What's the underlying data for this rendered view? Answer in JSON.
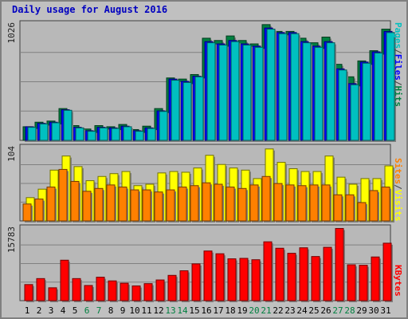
{
  "title": "Daily usage for August 2016",
  "colors": {
    "background": "#c0c0c0",
    "panel": "#b8b8b8",
    "title": "#0000c0",
    "pages": "#00c0c0",
    "files": "#0000ff",
    "hits": "#008040",
    "visits": "#ffff00",
    "sites": "#ff8000",
    "kbytes": "#ff0000",
    "weekday_label": "#000000",
    "weekend_label": "#008040"
  },
  "chart_data": [
    {
      "type": "bar",
      "panel": "top",
      "ymax_label": "1026",
      "ylim": [
        0,
        1026
      ],
      "grid": true,
      "categories": [
        "1",
        "2",
        "3",
        "4",
        "5",
        "6",
        "7",
        "8",
        "9",
        "10",
        "11",
        "12",
        "13",
        "14",
        "15",
        "16",
        "17",
        "18",
        "19",
        "20",
        "21",
        "22",
        "23",
        "24",
        "25",
        "26",
        "27",
        "28",
        "29",
        "30",
        "31"
      ],
      "weekend_days": [
        "6",
        "7",
        "13",
        "14",
        "20",
        "21",
        "27",
        "28"
      ],
      "legend": [
        "Pages",
        "/",
        "Files",
        "/",
        "Hits"
      ],
      "series": [
        {
          "name": "Hits",
          "values": [
            120,
            160,
            170,
            280,
            130,
            100,
            130,
            120,
            140,
            95,
            125,
            280,
            550,
            540,
            580,
            900,
            880,
            920,
            880,
            850,
            1020,
            960,
            960,
            900,
            860,
            910,
            670,
            560,
            700,
            790,
            980
          ]
        },
        {
          "name": "Files",
          "values": [
            120,
            150,
            160,
            270,
            115,
            85,
            115,
            110,
            125,
            85,
            110,
            260,
            540,
            520,
            565,
            870,
            850,
            880,
            850,
            830,
            990,
            950,
            950,
            870,
            830,
            870,
            630,
            500,
            690,
            780,
            960
          ]
        },
        {
          "name": "Pages",
          "values": [
            115,
            145,
            155,
            265,
            110,
            80,
            110,
            105,
            120,
            80,
            105,
            255,
            530,
            510,
            560,
            860,
            840,
            870,
            840,
            820,
            980,
            940,
            940,
            860,
            820,
            860,
            620,
            490,
            680,
            770,
            950
          ]
        }
      ]
    },
    {
      "type": "bar",
      "panel": "middle",
      "ymax_label": "104",
      "ylim": [
        0,
        104
      ],
      "grid": true,
      "categories": [
        "1",
        "2",
        "3",
        "4",
        "5",
        "6",
        "7",
        "8",
        "9",
        "10",
        "11",
        "12",
        "13",
        "14",
        "15",
        "16",
        "17",
        "18",
        "19",
        "20",
        "21",
        "22",
        "23",
        "24",
        "25",
        "26",
        "27",
        "28",
        "29",
        "30",
        "31"
      ],
      "legend": [
        "Sites",
        "/",
        "Visits"
      ],
      "series": [
        {
          "name": "Visits",
          "values": [
            33,
            45,
            72,
            92,
            77,
            57,
            63,
            67,
            70,
            50,
            52,
            68,
            70,
            69,
            75,
            93,
            80,
            75,
            72,
            60,
            102,
            83,
            74,
            70,
            70,
            92,
            62,
            52,
            60,
            60,
            78
          ]
        },
        {
          "name": "Sites",
          "values": [
            24,
            31,
            48,
            73,
            56,
            42,
            46,
            51,
            48,
            44,
            44,
            41,
            44,
            48,
            50,
            54,
            52,
            48,
            46,
            51,
            63,
            53,
            51,
            50,
            51,
            51,
            37,
            37,
            26,
            43,
            48
          ]
        }
      ]
    },
    {
      "type": "bar",
      "panel": "bottom",
      "ymax_label": "15783",
      "ylim": [
        0,
        15783
      ],
      "grid": true,
      "categories": [
        "1",
        "2",
        "3",
        "4",
        "5",
        "6",
        "7",
        "8",
        "9",
        "10",
        "11",
        "12",
        "13",
        "14",
        "15",
        "16",
        "17",
        "18",
        "19",
        "20",
        "21",
        "22",
        "23",
        "24",
        "25",
        "26",
        "27",
        "28",
        "29",
        "30",
        "31"
      ],
      "legend": [
        "KBytes"
      ],
      "series": [
        {
          "name": "KBytes",
          "values": [
            3500,
            4800,
            2800,
            8800,
            4800,
            3300,
            5100,
            4300,
            3800,
            3200,
            3700,
            4500,
            5500,
            6500,
            8000,
            10800,
            10200,
            9100,
            9200,
            8900,
            12800,
            11400,
            10300,
            11500,
            9600,
            11600,
            15700,
            7800,
            7700,
            9500,
            12500
          ]
        }
      ]
    }
  ]
}
